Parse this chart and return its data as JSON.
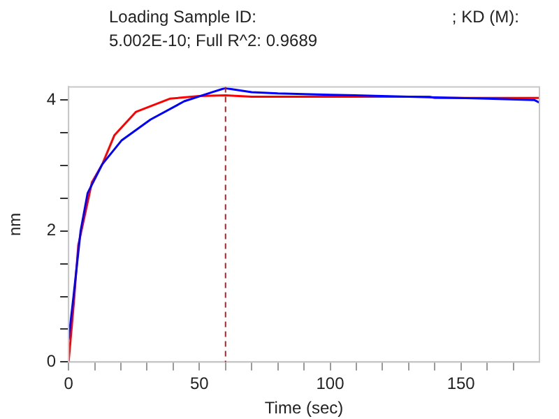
{
  "chart_data": {
    "type": "line",
    "title": "Loading Sample ID:                                          ; KD (M):\n5.002E-10; Full R^2: 0.9689",
    "xlabel": "Time (sec)",
    "ylabel": "nm",
    "xlim": [
      0,
      180
    ],
    "ylim": [
      0,
      4.2
    ],
    "xticks": [
      0,
      {
        "value": 10,
        "label": null
      },
      {
        "value": 20,
        "label": null
      },
      {
        "value": 30,
        "label": null
      },
      {
        "value": 40,
        "label": null
      },
      50,
      {
        "value": 60,
        "label": null
      },
      {
        "value": 70,
        "label": null
      },
      {
        "value": 80,
        "label": null
      },
      {
        "value": 90,
        "label": null
      },
      100,
      {
        "value": 110,
        "label": null
      },
      {
        "value": 120,
        "label": null
      },
      {
        "value": 130,
        "label": null
      },
      {
        "value": 140,
        "label": null
      },
      150,
      {
        "value": 160,
        "label": null
      },
      {
        "value": 170,
        "label": null
      }
    ],
    "yticks": [
      0,
      {
        "value": 0.5,
        "label": null
      },
      {
        "value": 1,
        "label": null
      },
      {
        "value": 1.5,
        "label": null
      },
      2,
      {
        "value": 2.5,
        "label": null
      },
      {
        "value": 3,
        "label": null
      },
      {
        "value": 3.5,
        "label": null
      },
      4
    ],
    "grid": false,
    "legend": false,
    "marker": "none",
    "line_style": "solid",
    "series": [
      {
        "color": "#0000ff",
        "x": [
          0,
          1.8,
          4.6,
          7.3,
          12.9,
          20.2,
          31.3,
          44.2,
          55,
          59.8,
          70,
          80,
          100,
          130,
          160,
          178,
          180
        ],
        "values": [
          0.34,
          0.97,
          2.0,
          2.58,
          3.02,
          3.38,
          3.7,
          3.98,
          4.12,
          4.18,
          4.12,
          4.1,
          4.08,
          4.05,
          4.02,
          4.0,
          3.96
        ]
      },
      {
        "color": "#ff0000",
        "x": [
          0,
          2,
          3.7,
          8.9,
          12.9,
          17.5,
          25.8,
          38.7,
          50,
          60,
          70,
          100,
          138,
          140,
          180
        ],
        "values": [
          0,
          0.9,
          1.78,
          2.74,
          3.02,
          3.46,
          3.82,
          4.02,
          4.06,
          4.07,
          4.05,
          4.05,
          4.05,
          4.03,
          4.03
        ]
      }
    ],
    "ref_lines": [
      {
        "axis": "x",
        "value": 60,
        "color": "#b22222",
        "line_style": "dashed"
      }
    ]
  }
}
